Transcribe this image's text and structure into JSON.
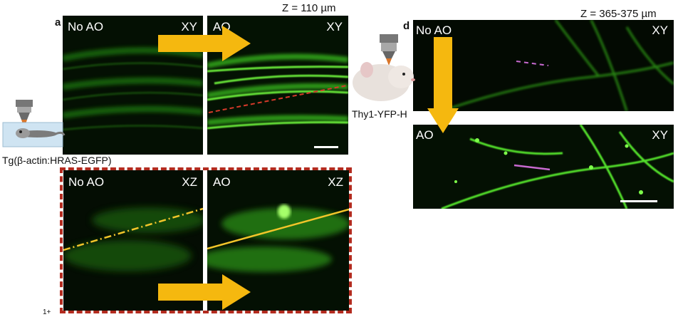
{
  "figure": {
    "panel_a": {
      "letter": "a",
      "depth_label": "Z = 110 µm",
      "sample_label": "Tg(β-actin:HRAS-EGFP)",
      "xy_no_ao": {
        "left": "No AO",
        "right": "XY"
      },
      "xy_ao": {
        "left": "AO",
        "right": "XY"
      },
      "xz_no_ao": {
        "left": "No AO",
        "right": "XZ"
      },
      "xz_ao": {
        "left": "AO",
        "right": "XZ"
      }
    },
    "panel_d": {
      "letter": "d",
      "depth_label": "Z = 365-375 µm",
      "sample_label": "Thy1-YFP-H",
      "no_ao": {
        "left": "No AO",
        "right": "XY"
      },
      "ao": {
        "left": "AO",
        "right": "XY"
      }
    },
    "footnote": "1+"
  },
  "colors": {
    "arrow": "#f5b80f",
    "fluorescence": "#3fd21a",
    "red_dash": "#d63a2a",
    "yellow_line": "#f2c52a",
    "pink_line": "#c86ad0"
  },
  "icons": [
    "zebrafish-objective-icon",
    "mouse-objective-icon"
  ]
}
